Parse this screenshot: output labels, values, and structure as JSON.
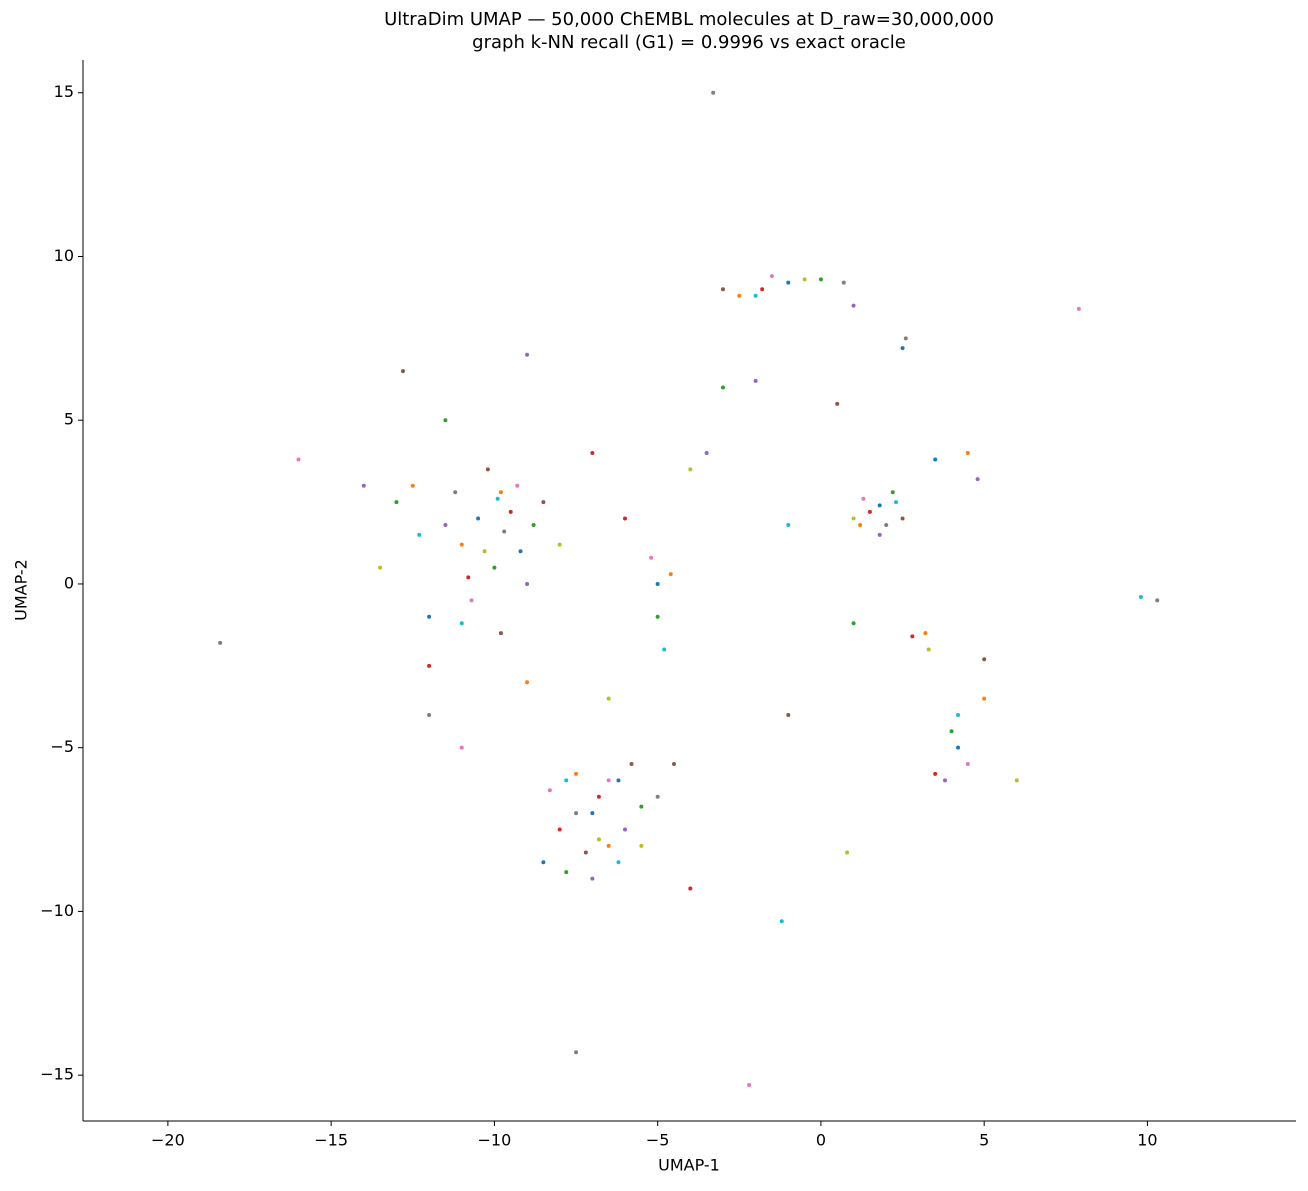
{
  "chart_data": {
    "type": "scatter",
    "title": "UltraDim UMAP — 50,000 ChEMBL molecules at D_raw=30,000,000",
    "subtitle": "graph k-NN recall (G1) = 0.9996 vs exact oracle",
    "x_label": "UMAP-1",
    "y_label": "UMAP-2",
    "xlim": [
      -22.6,
      14.55
    ],
    "ylim": [
      -16.4,
      16.0
    ],
    "xticks": [
      {
        "value": -20,
        "label": "−20"
      },
      {
        "value": -15,
        "label": "−15"
      },
      {
        "value": -10,
        "label": "−10"
      },
      {
        "value": -5,
        "label": "−5"
      },
      0,
      5,
      10
    ],
    "yticks": [
      {
        "value": -15,
        "label": "−15"
      },
      {
        "value": -10,
        "label": "−10"
      },
      {
        "value": -5,
        "label": "−5"
      },
      0,
      5,
      10,
      15
    ],
    "grid": false,
    "series": [
      {
        "color": "#1f77b4",
        "x": [
          -10.5,
          -9.2,
          -7,
          -6.2,
          1.8,
          -1,
          4.2,
          -12,
          -5,
          3.5,
          -8.5,
          2.5
        ],
        "values": [
          2.0,
          1.0,
          -7,
          -6,
          2.4,
          9.2,
          -5,
          -1,
          0,
          3.8,
          -8.5,
          7.2
        ]
      },
      {
        "color": "#ff7f0e",
        "x": [
          -11,
          -9.8,
          -6.5,
          -7.5,
          1.2,
          -2.5,
          3.2,
          -12.5,
          -4.6,
          4.5,
          -9,
          5
        ],
        "values": [
          1.2,
          2.8,
          -8,
          -5.8,
          1.8,
          8.8,
          -1.5,
          3,
          0.3,
          4,
          -3,
          -3.5
        ]
      },
      {
        "color": "#2ca02c",
        "x": [
          -10,
          -8.8,
          -5.5,
          -7.8,
          2.2,
          0,
          4,
          -13,
          -5,
          -3,
          1,
          -11.5
        ],
        "values": [
          0.5,
          1.8,
          -6.8,
          -8.8,
          2.8,
          9.3,
          -4.5,
          2.5,
          -1,
          6,
          -1.2,
          5
        ]
      },
      {
        "color": "#d62728",
        "x": [
          -9.5,
          -10.8,
          -6.8,
          -8,
          1.5,
          -1.8,
          2.8,
          -12,
          -6,
          -7,
          -4,
          3.5
        ],
        "values": [
          2.2,
          0.2,
          -6.5,
          -7.5,
          2.2,
          9.0,
          -1.6,
          -2.5,
          2,
          4,
          -9.3,
          -5.8
        ]
      },
      {
        "color": "#9467bd",
        "x": [
          -11.5,
          -9,
          -6,
          -7,
          1.8,
          1,
          3.8,
          -14,
          -3.5,
          -2,
          -9,
          4.8
        ],
        "values": [
          1.8,
          0,
          -7.5,
          -9,
          1.5,
          8.5,
          -6,
          3,
          4,
          6.2,
          7,
          3.2
        ]
      },
      {
        "color": "#8c564b",
        "x": [
          -10.2,
          -8.5,
          -5.8,
          -7.2,
          2.5,
          -3,
          5,
          -12.8,
          -4.5,
          0.5,
          -9.8,
          -1
        ],
        "values": [
          3.5,
          2.5,
          -5.5,
          -8.2,
          2,
          9,
          -2.3,
          6.5,
          -5.5,
          5.5,
          -1.5,
          -4
        ]
      },
      {
        "color": "#e377c2",
        "x": [
          -10.7,
          -9.3,
          -6.5,
          -8.3,
          1.3,
          -1.5,
          4.5,
          -11,
          -5.2,
          -2.2,
          7.9,
          -16
        ],
        "values": [
          -0.5,
          3,
          -6,
          -6.3,
          2.6,
          9.4,
          -5.5,
          -5,
          0.8,
          -15.3,
          8.4,
          3.8
        ]
      },
      {
        "color": "#7f7f7f",
        "x": [
          -9.7,
          -11.2,
          -7.5,
          -5,
          2,
          0.7,
          2.6,
          -12,
          -3.3,
          -18.4,
          10.3,
          -7.5
        ],
        "values": [
          1.6,
          2.8,
          -7,
          -6.5,
          1.8,
          9.2,
          7.5,
          -4,
          15,
          -1.8,
          -0.5,
          -14.3
        ]
      },
      {
        "color": "#bcbd22",
        "x": [
          -10.3,
          -8,
          -6.8,
          -5.5,
          1,
          -0.5,
          3.3,
          -13.5,
          -6.5,
          -4,
          6,
          0.8
        ],
        "values": [
          1,
          1.2,
          -7.8,
          -8,
          2,
          9.3,
          -2,
          0.5,
          -3.5,
          3.5,
          -6,
          -8.2
        ]
      },
      {
        "color": "#17becf",
        "x": [
          -9.9,
          -11,
          -6.2,
          -7.8,
          2.3,
          -2,
          4.2,
          -12.3,
          -4.8,
          -1,
          -1.2,
          9.8
        ],
        "values": [
          2.6,
          -1.2,
          -8.5,
          -6,
          2.5,
          8.8,
          -4,
          1.5,
          -2,
          1.8,
          -10.3,
          -0.4
        ]
      }
    ]
  }
}
